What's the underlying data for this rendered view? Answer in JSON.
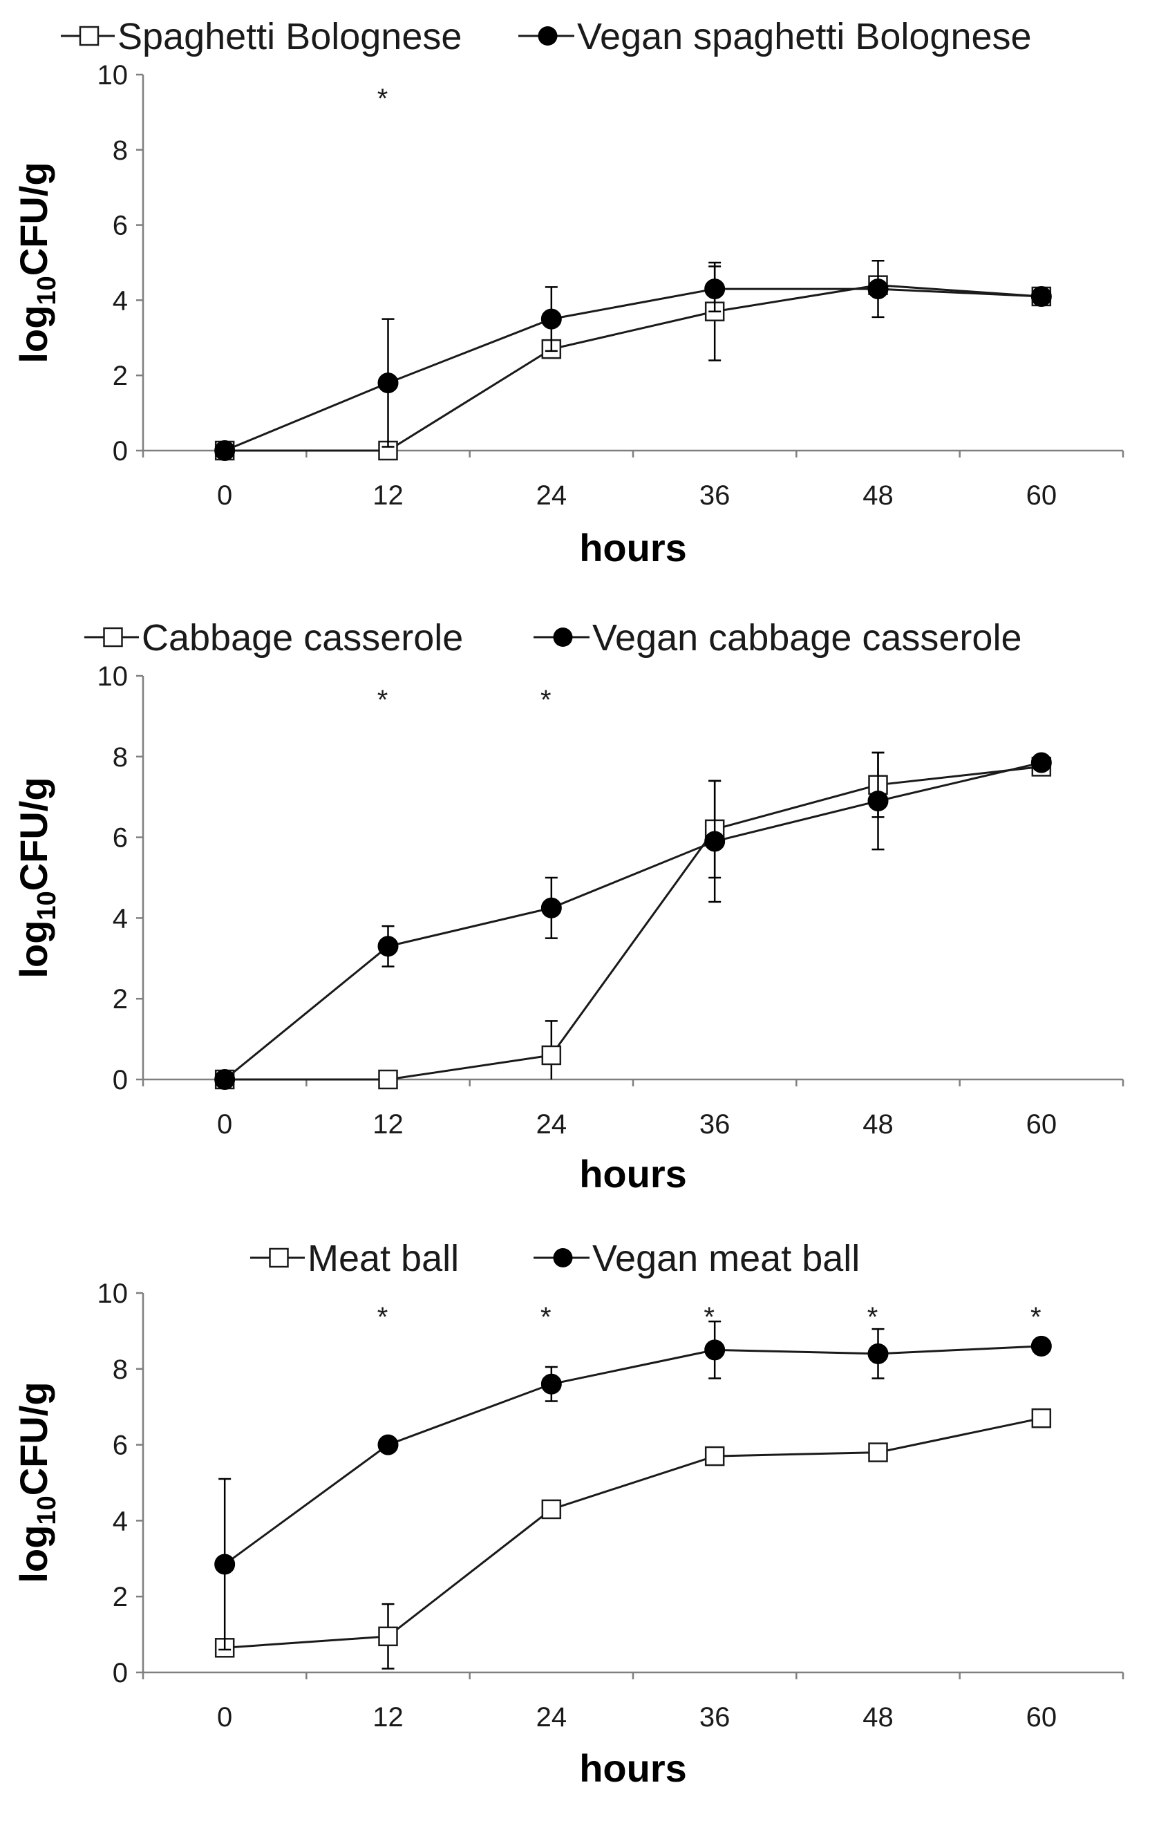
{
  "chart_data": [
    {
      "type": "line",
      "x": [
        0,
        12,
        24,
        36,
        48,
        60
      ],
      "xticks": [
        "0",
        "12",
        "24",
        "36",
        "48",
        "60"
      ],
      "yticks": [
        "0",
        "2",
        "4",
        "6",
        "8",
        "10"
      ],
      "xlim": [
        -6,
        66
      ],
      "ylim": [
        0,
        10
      ],
      "xlabel": "hours",
      "ylabel_main": "log",
      "ylabel_sub": "10",
      "ylabel_tail": "CFU/g",
      "series": [
        {
          "name": "Spaghetti Bolognese",
          "marker": "open-square",
          "values": [
            0,
            0,
            2.7,
            3.7,
            4.4,
            4.1
          ],
          "errors": [
            0,
            0,
            0.2,
            1.3,
            0.2,
            0.1
          ]
        },
        {
          "name": "Vegan spaghetti Bolognese",
          "marker": "filled-circle",
          "values": [
            0,
            1.8,
            3.5,
            4.3,
            4.3,
            4.1
          ],
          "errors": [
            0,
            1.7,
            0.85,
            0.6,
            0.75,
            0.05
          ]
        }
      ],
      "significance": [
        {
          "x": 12,
          "label": "*"
        }
      ],
      "legend_position": "top"
    },
    {
      "type": "line",
      "x": [
        0,
        12,
        24,
        36,
        48,
        60
      ],
      "xticks": [
        "0",
        "12",
        "24",
        "36",
        "48",
        "60"
      ],
      "yticks": [
        "0",
        "2",
        "4",
        "6",
        "8",
        "10"
      ],
      "xlim": [
        -6,
        66
      ],
      "ylim": [
        0,
        10
      ],
      "xlabel": "hours",
      "ylabel_main": "log",
      "ylabel_sub": "10",
      "ylabel_tail": "CFU/g",
      "series": [
        {
          "name": "Cabbage casserole",
          "marker": "open-square",
          "values": [
            0,
            0,
            0.6,
            6.2,
            7.3,
            7.75
          ],
          "errors": [
            0,
            0,
            0.85,
            1.2,
            0.8,
            0.1
          ]
        },
        {
          "name": "Vegan cabbage casserole",
          "marker": "filled-circle",
          "values": [
            0,
            3.3,
            4.25,
            5.9,
            6.9,
            7.85
          ],
          "errors": [
            0,
            0.5,
            0.75,
            1.5,
            1.2,
            0.05
          ]
        }
      ],
      "significance": [
        {
          "x": 12,
          "label": "*"
        },
        {
          "x": 24,
          "label": "*"
        }
      ],
      "legend_position": "top"
    },
    {
      "type": "line",
      "x": [
        0,
        12,
        24,
        36,
        48,
        60
      ],
      "xticks": [
        "0",
        "12",
        "24",
        "36",
        "48",
        "60"
      ],
      "yticks": [
        "0",
        "2",
        "4",
        "6",
        "8",
        "10"
      ],
      "xlim": [
        -6,
        66
      ],
      "ylim": [
        0,
        10
      ],
      "xlabel": "hours",
      "ylabel_main": "log",
      "ylabel_sub": "10",
      "ylabel_tail": "CFU/g",
      "series": [
        {
          "name": "Meat ball",
          "marker": "open-square",
          "values": [
            0.65,
            0.95,
            4.3,
            5.7,
            5.8,
            6.7
          ],
          "errors": [
            0.1,
            0.85,
            0.1,
            0.1,
            0.2,
            0.1
          ]
        },
        {
          "name": "Vegan meat ball",
          "marker": "filled-circle",
          "values": [
            2.85,
            6.0,
            7.6,
            8.5,
            8.4,
            8.6
          ],
          "errors": [
            2.25,
            0.1,
            0.45,
            0.75,
            0.65,
            0.05
          ]
        }
      ],
      "significance": [
        {
          "x": 12,
          "label": "*"
        },
        {
          "x": 24,
          "label": "*"
        },
        {
          "x": 36,
          "label": "*"
        },
        {
          "x": 48,
          "label": "*"
        },
        {
          "x": 60,
          "label": "*"
        }
      ],
      "legend_position": "top"
    }
  ]
}
